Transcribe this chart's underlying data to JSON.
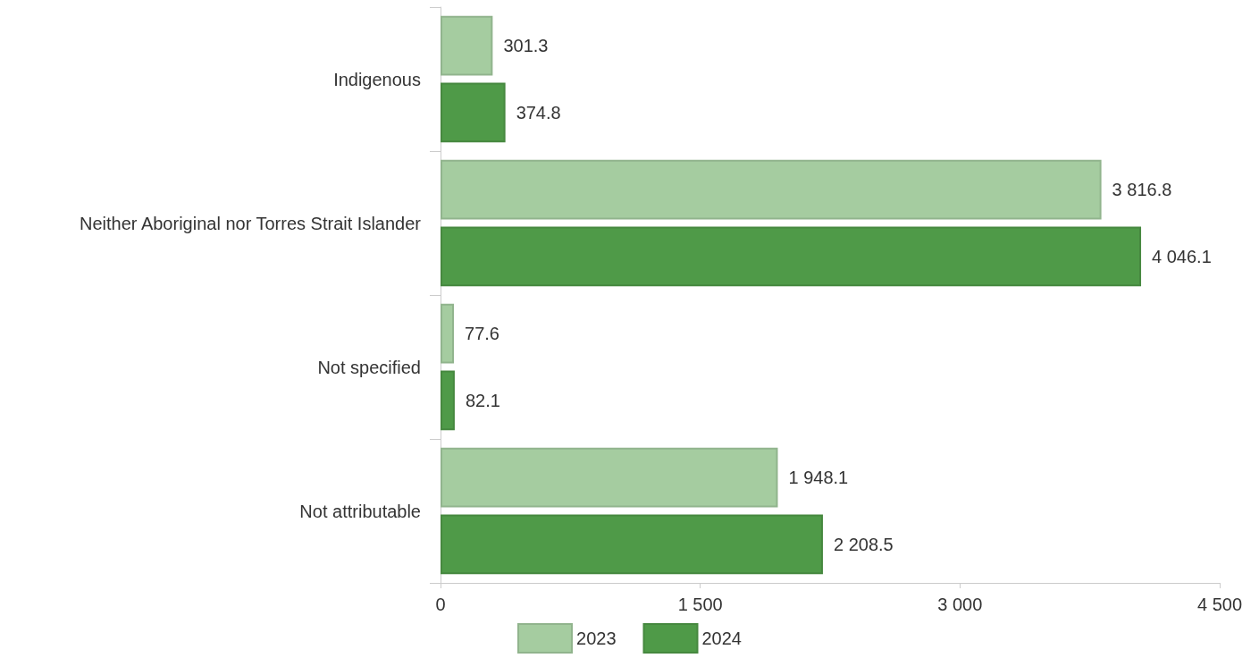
{
  "chart_data": {
    "type": "bar",
    "orientation": "horizontal",
    "categories": [
      "Indigenous",
      "Neither Aboriginal nor Torres Strait Islander",
      "Not specified",
      "Not attributable"
    ],
    "series": [
      {
        "name": "2023",
        "color": "#a5cca0",
        "values": [
          301.3,
          3816.8,
          77.6,
          1948.1
        ],
        "value_labels": [
          "301.3",
          "3 816.8",
          "77.6",
          "1 948.1"
        ]
      },
      {
        "name": "2024",
        "color": "#4f9a48",
        "values": [
          374.8,
          4046.1,
          82.1,
          2208.5
        ],
        "value_labels": [
          "374.8",
          "4 046.1",
          "82.1",
          "2 208.5"
        ]
      }
    ],
    "xlim": [
      0,
      4500
    ],
    "xticks": [
      0,
      {
        "value": 1500,
        "label": "1 500"
      },
      {
        "value": 3000,
        "label": "3 000"
      },
      {
        "value": 4500,
        "label": "4 500"
      }
    ],
    "grid": false,
    "legend": "bottom"
  }
}
